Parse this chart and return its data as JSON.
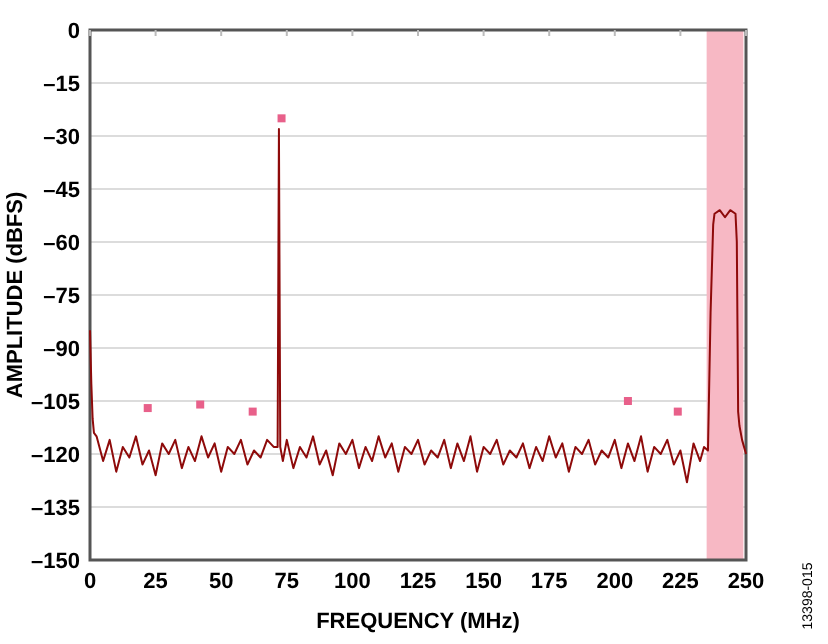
{
  "chart_data": {
    "type": "line",
    "xlabel": "FREQUENCY (MHz)",
    "ylabel": "AMPLITUDE (dBFS)",
    "xlim": [
      0,
      250
    ],
    "xticks": [
      0,
      25,
      50,
      75,
      100,
      125,
      150,
      175,
      200,
      225,
      250
    ],
    "ylim": [
      -150,
      0
    ],
    "yticks": [
      0,
      {
        "value": -15,
        "label": "–15"
      },
      {
        "value": -30,
        "label": "–30"
      },
      {
        "value": -45,
        "label": "–45"
      },
      {
        "value": -60,
        "label": "–60"
      },
      {
        "value": -75,
        "label": "–75"
      },
      {
        "value": -90,
        "label": "–90"
      },
      {
        "value": -105,
        "label": "–105"
      },
      {
        "value": -120,
        "label": "–120"
      },
      {
        "value": -135,
        "label": "–135"
      },
      {
        "value": -150,
        "label": "–150"
      }
    ],
    "grid": "y",
    "line_style": "solid",
    "marker": "none",
    "bands": [
      {
        "axis": "x",
        "from": 235,
        "to": 249,
        "color": "#f7b8c4"
      }
    ],
    "annotations": [
      "13398-015"
    ],
    "series": [
      {
        "color": "#8e0a0a",
        "x": [
          0,
          0.5,
          1,
          1.5,
          2.5,
          5,
          7.5,
          10,
          12.5,
          15,
          17.5,
          20,
          22.5,
          25,
          27.5,
          30,
          32.5,
          35,
          37.5,
          40,
          42.5,
          45,
          47.5,
          50,
          52.5,
          55,
          57.5,
          60,
          62.5,
          65,
          67.5,
          70,
          71.5,
          72,
          72.5,
          73.5,
          75,
          77.5,
          80,
          82.5,
          85,
          87.5,
          90,
          92.5,
          95,
          97.5,
          100,
          102.5,
          105,
          107.5,
          110,
          112.5,
          115,
          117.5,
          120,
          122.5,
          125,
          127.5,
          130,
          132.5,
          135,
          137.5,
          140,
          142.5,
          145,
          147.5,
          150,
          152.5,
          155,
          157.5,
          160,
          162.5,
          165,
          167.5,
          170,
          172.5,
          175,
          177.5,
          180,
          182.5,
          185,
          187.5,
          190,
          192.5,
          195,
          197.5,
          200,
          202.5,
          205,
          207.5,
          210,
          212.5,
          215,
          217.5,
          220,
          222.5,
          225,
          227.5,
          230,
          232.5,
          234,
          235.5,
          236.5,
          237.5,
          238,
          240,
          242,
          244,
          246,
          246.5,
          247,
          247.5,
          248.5,
          250
        ],
        "values": [
          -85,
          -100,
          -110,
          -114,
          -115,
          -122,
          -116,
          -125,
          -118,
          -121,
          -115,
          -123,
          -119,
          -126,
          -117,
          -120,
          -116,
          -124,
          -118,
          -122,
          -115,
          -121,
          -117,
          -125,
          -118,
          -120,
          -116,
          -123,
          -119,
          -121,
          -116,
          -118,
          -118,
          -28,
          -118,
          -122,
          -116,
          -124,
          -118,
          -121,
          -115,
          -123,
          -119,
          -126,
          -117,
          -120,
          -116,
          -124,
          -118,
          -122,
          -115,
          -121,
          -117,
          -125,
          -118,
          -120,
          -116,
          -123,
          -119,
          -121,
          -116,
          -124,
          -117,
          -122,
          -115,
          -125,
          -118,
          -120,
          -116,
          -123,
          -119,
          -121,
          -117,
          -124,
          -118,
          -122,
          -115,
          -121,
          -117,
          -125,
          -118,
          -120,
          -116,
          -123,
          -119,
          -121,
          -116,
          -124,
          -117,
          -122,
          -115,
          -125,
          -118,
          -120,
          -116,
          -123,
          -119,
          -128,
          -117,
          -122,
          -118,
          -119,
          -80,
          -55,
          -52,
          -51,
          -53,
          -51,
          -52,
          -60,
          -108,
          -112,
          -116,
          -120
        ]
      },
      {
        "type": "scatter",
        "color": "#e8608a",
        "marker": "square",
        "x": [
          22,
          42,
          62,
          73,
          205,
          224
        ],
        "values": [
          -107,
          -106,
          -108,
          -25,
          -105,
          -108
        ]
      }
    ]
  }
}
